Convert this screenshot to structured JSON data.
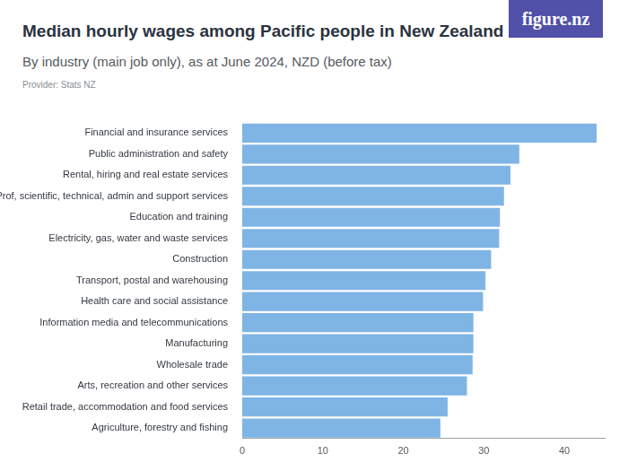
{
  "chart_data": {
    "type": "bar",
    "orientation": "horizontal",
    "title": "Median hourly wages among Pacific people in New Zealand",
    "subtitle": "By industry (main job only), as at June 2024, NZD (before tax)",
    "source": "Provider: Stats NZ",
    "logo": "figure.nz",
    "categories": [
      "Financial and insurance services",
      "Public administration and safety",
      "Rental, hiring and real estate services",
      "Prof, scientific, technical, admin and support services",
      "Education and training",
      "Electricity, gas, water and waste services",
      "Construction",
      "Transport, postal and warehousing",
      "Health care and social assistance",
      "Information media and telecommunications",
      "Manufacturing",
      "Wholesale trade",
      "Arts, recreation and other services",
      "Retail trade, accommodation and food services",
      "Agriculture, forestry and fishing"
    ],
    "values": [
      44.0,
      34.4,
      33.3,
      32.5,
      32.0,
      31.9,
      30.9,
      30.2,
      29.9,
      28.7,
      28.7,
      28.6,
      27.9,
      25.5,
      24.6
    ],
    "color": "#7fb5e5",
    "xlim": [
      0,
      45
    ],
    "xticks": [
      0,
      10,
      20,
      30,
      40
    ],
    "grid": false
  }
}
